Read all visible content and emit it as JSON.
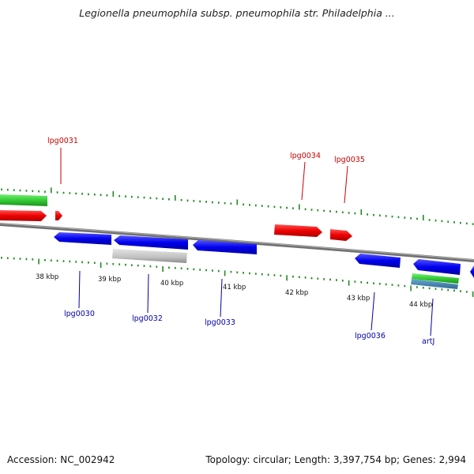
{
  "title": "Legionella pneumophila subsp. pneumophila str. Philadelphia ...",
  "footer": {
    "accession": "Accession: NC_002942",
    "summary": "Topology: circular; Length: 3,397,754 bp; Genes: 2,994"
  },
  "colors": {
    "forward_cds": "#ff0000",
    "reverse_cds": "#0000ee",
    "rna": "#33cc33",
    "other": "#bdbdbd",
    "tick": "#228b22",
    "backbone": "#808080",
    "forward_label": "#cc0000",
    "reverse_label": "#0000aa"
  },
  "scale_labels": [
    "38 kbp",
    "39 kbp",
    "40 kbp",
    "41 kbp",
    "42 kbp",
    "43 kbp",
    "44 kbp"
  ],
  "gene_labels": {
    "forward": [
      "lpg0031",
      "lpg0034",
      "lpg0035"
    ],
    "reverse": [
      "lpg0030",
      "lpg0032",
      "lpg0033",
      "lpg0036",
      "artJ"
    ]
  }
}
